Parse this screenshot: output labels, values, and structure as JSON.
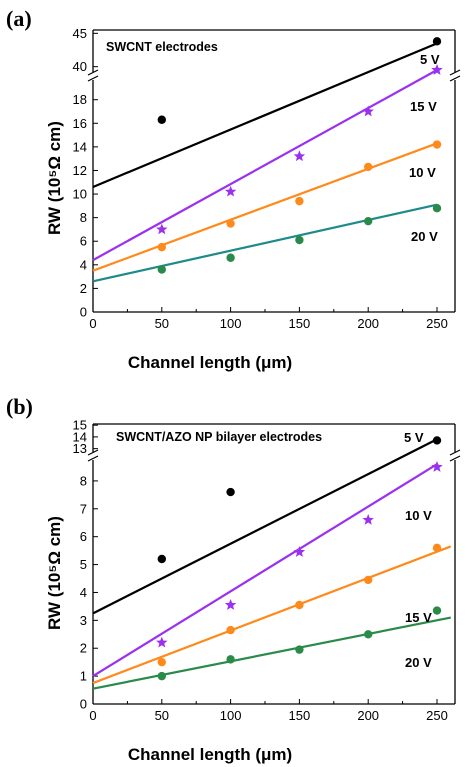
{
  "chart_data": [
    {
      "panel": "(a)",
      "type": "scatter",
      "title": "SWCNT electrodes",
      "xlabel": "Channel length (μm)",
      "ylabel": "RW (10⁵Ω cm)",
      "xlim": [
        0,
        260
      ],
      "xticks": [
        0,
        50,
        100,
        150,
        200,
        250
      ],
      "ylim_lower": [
        0,
        19.5
      ],
      "ylim_upper": [
        39.5,
        45.5
      ],
      "yticks": [
        0,
        2,
        4,
        6,
        8,
        10,
        12,
        14,
        16,
        18,
        40,
        45
      ],
      "axis_break": [
        19.5,
        39.5
      ],
      "grid": false,
      "series": [
        {
          "name": "5 V",
          "color": "#000000",
          "marker": "circle",
          "x": [
            50,
            250
          ],
          "y": [
            16.3,
            43.8
          ],
          "fit": {
            "x": [
              0,
              250
            ],
            "y": [
              10.6,
              43.5
            ]
          }
        },
        {
          "name": "15 V",
          "color": "#9b30f0",
          "marker": "star",
          "x": [
            50,
            100,
            150,
            200,
            250
          ],
          "y": [
            7.0,
            10.2,
            13.2,
            17.0,
            19.6
          ],
          "fit": {
            "x": [
              0,
              250
            ],
            "y": [
              4.4,
              19.6
            ]
          }
        },
        {
          "name": "10 V",
          "color": "#ff8a1c",
          "marker": "circle",
          "x": [
            50,
            100,
            150,
            200,
            250
          ],
          "y": [
            5.5,
            7.5,
            9.4,
            12.3,
            14.2
          ],
          "fit": {
            "x": [
              0,
              250
            ],
            "y": [
              3.5,
              14.3
            ]
          }
        },
        {
          "name": "20 V",
          "color": "#2a8a4a",
          "marker": "circle",
          "x": [
            50,
            100,
            150,
            200,
            250
          ],
          "y": [
            3.6,
            4.6,
            6.1,
            7.7,
            8.8
          ],
          "fit": {
            "x": [
              0,
              250
            ],
            "y": [
              2.6,
              9.1
            ]
          },
          "fit_color": "#1e8a8a"
        }
      ]
    },
    {
      "panel": "(b)",
      "type": "scatter",
      "title": "SWCNT/AZO NP bilayer electrodes",
      "xlabel": "Channel length (μm)",
      "ylabel": "RW (10⁵Ω cm)",
      "xlim": [
        0,
        260
      ],
      "xticks": [
        0,
        50,
        100,
        150,
        200,
        250
      ],
      "ylim_lower": [
        0,
        8.75
      ],
      "ylim_upper": [
        12.8,
        15.1
      ],
      "yticks": [
        0,
        1,
        2,
        3,
        4,
        5,
        6,
        7,
        8,
        13,
        14,
        15
      ],
      "axis_break": [
        8.75,
        12.8
      ],
      "grid": false,
      "series": [
        {
          "name": "5 V",
          "color": "#000000",
          "marker": "circle",
          "x": [
            50,
            100,
            250
          ],
          "y": [
            5.2,
            7.6,
            13.7
          ],
          "fit": {
            "x": [
              0,
              250
            ],
            "y": [
              3.25,
              13.8
            ]
          }
        },
        {
          "name": "10 V",
          "color": "#9b30f0",
          "marker": "star",
          "x": [
            50,
            100,
            150,
            200,
            250
          ],
          "y": [
            2.2,
            3.55,
            5.45,
            6.6,
            8.5
          ],
          "fit": {
            "x": [
              0,
              250
            ],
            "y": [
              1.0,
              8.6
            ]
          }
        },
        {
          "name": "15 V",
          "color": "#ff8a1c",
          "marker": "circle",
          "x": [
            50,
            100,
            150,
            200,
            250
          ],
          "y": [
            1.5,
            2.65,
            3.55,
            4.45,
            5.6
          ],
          "fit": {
            "x": [
              0,
              260
            ],
            "y": [
              0.75,
              5.65
            ]
          }
        },
        {
          "name": "20 V",
          "color": "#2a8a4a",
          "marker": "circle",
          "x": [
            50,
            100,
            150,
            200,
            250
          ],
          "y": [
            1.0,
            1.6,
            1.95,
            2.5,
            3.35
          ],
          "fit": {
            "x": [
              0,
              260
            ],
            "y": [
              0.55,
              3.1
            ]
          }
        }
      ]
    }
  ]
}
